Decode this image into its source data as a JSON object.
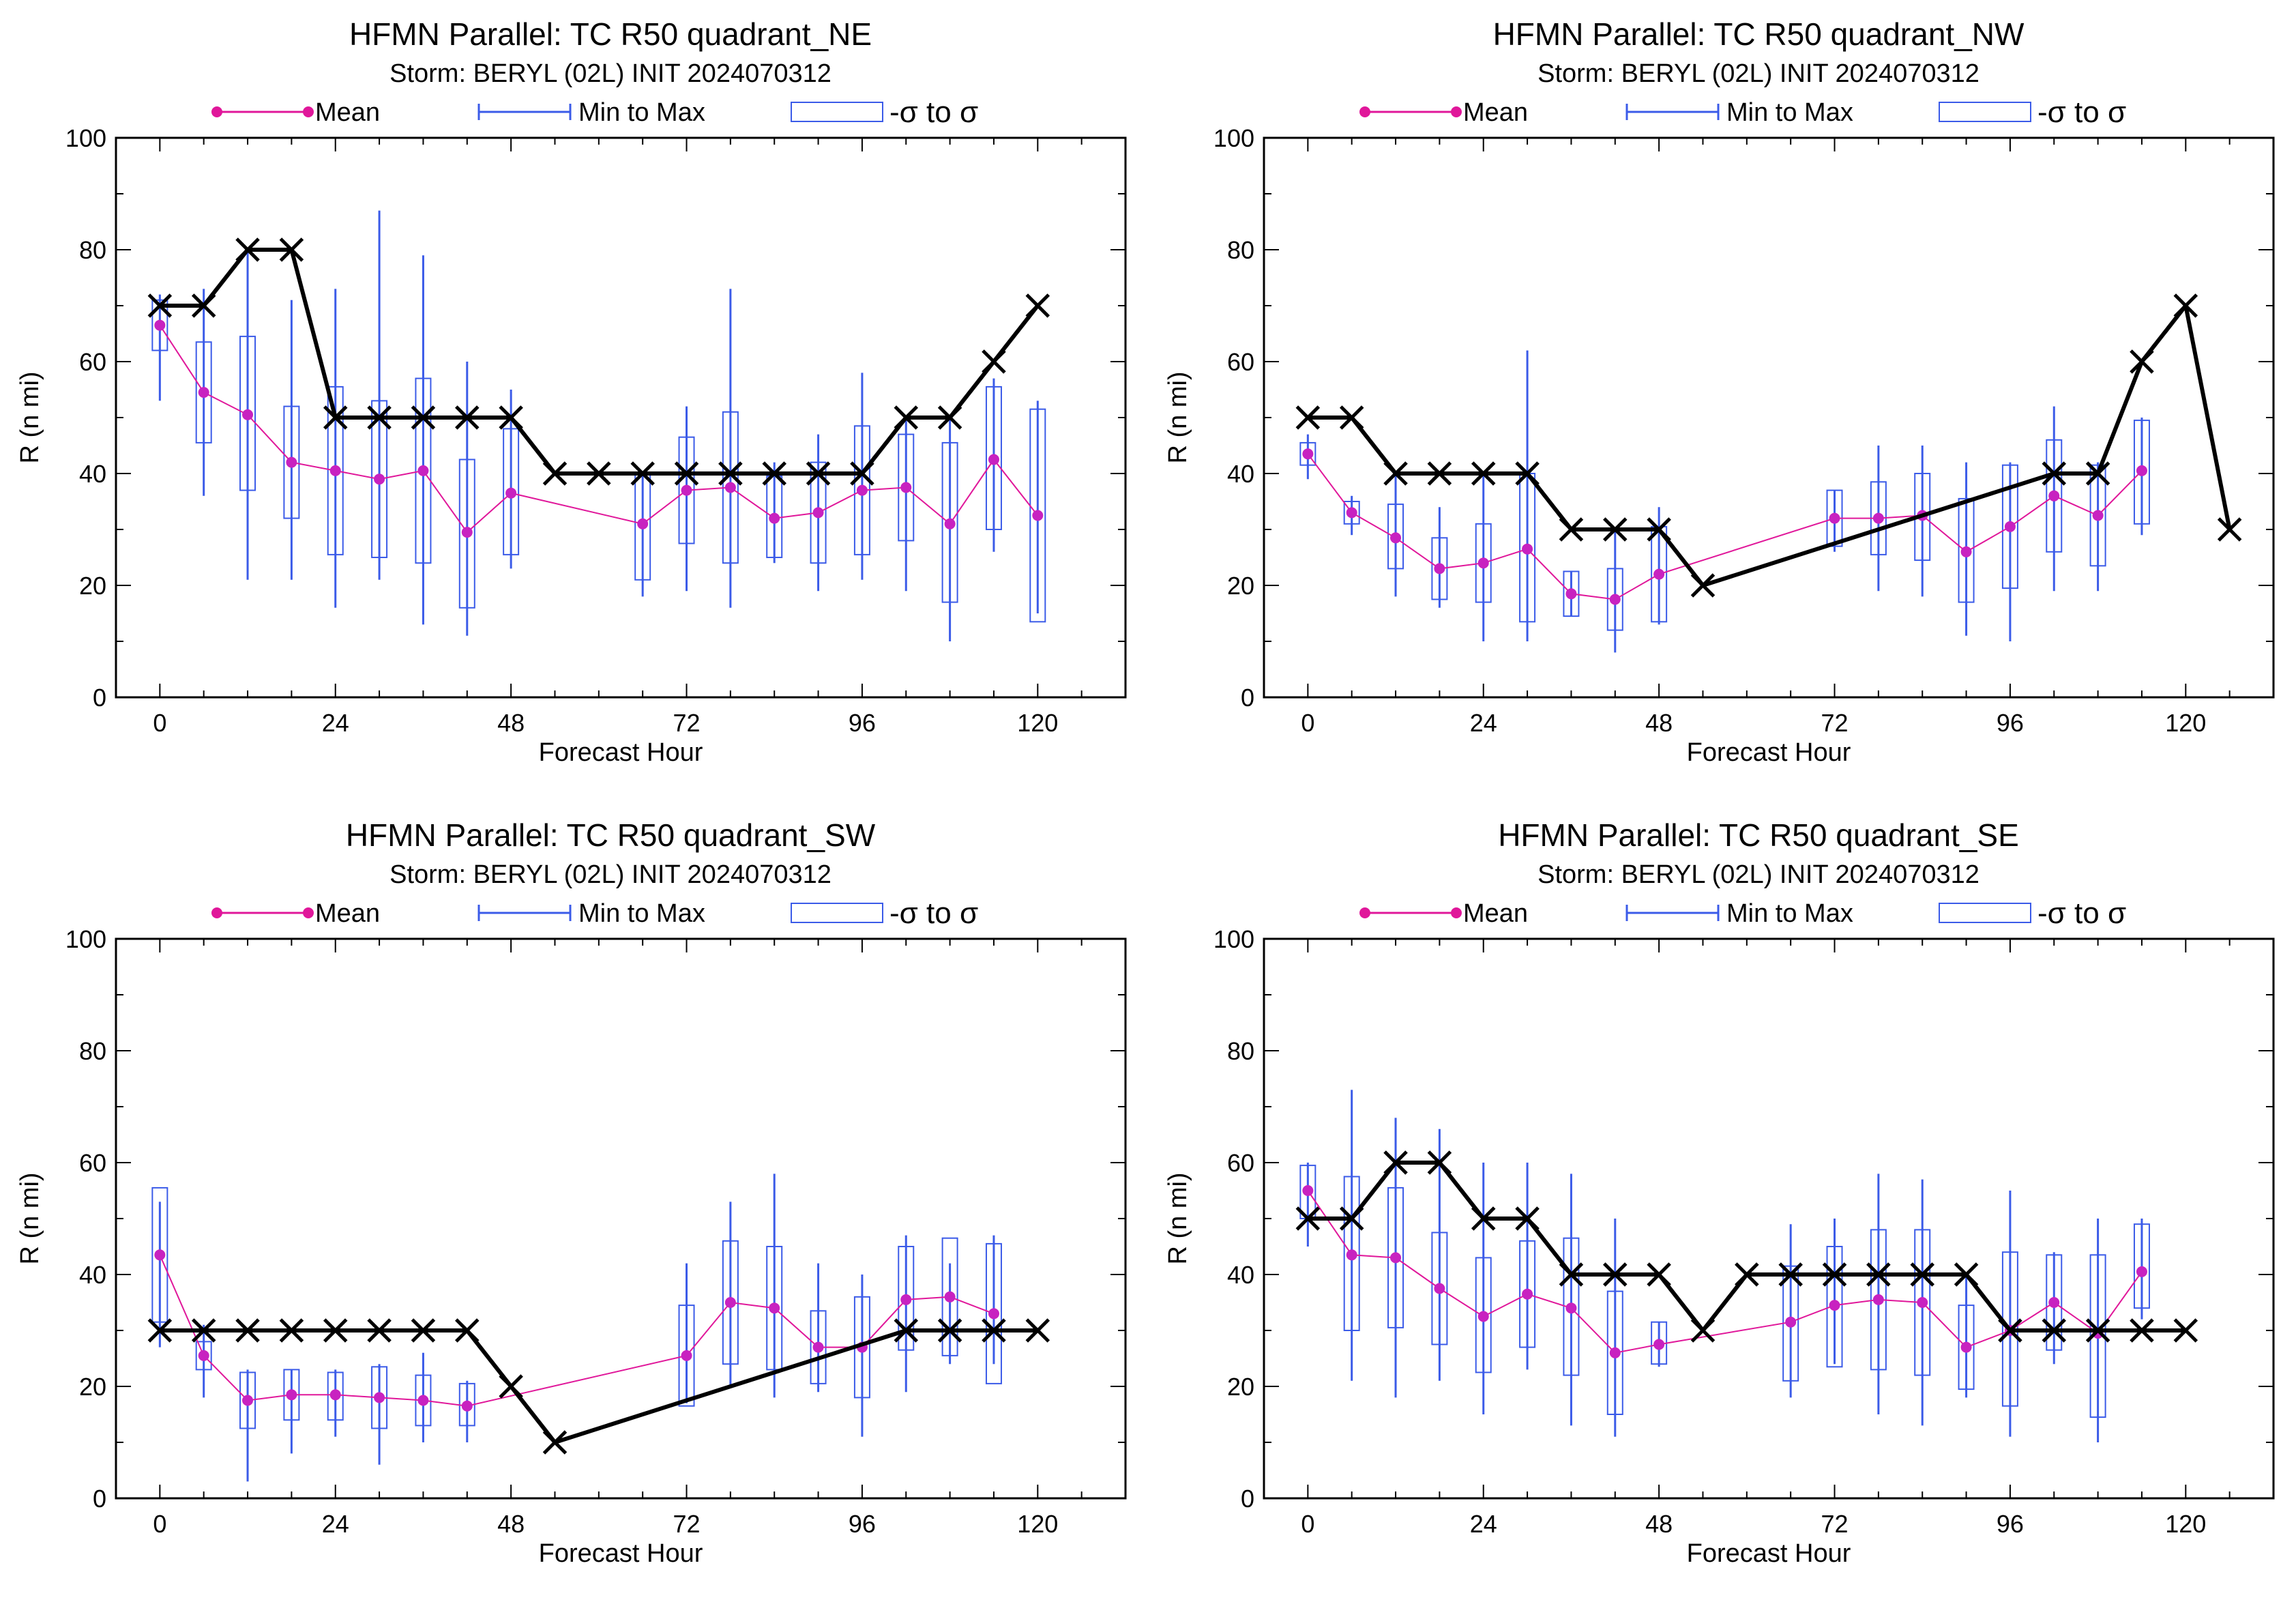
{
  "figure": {
    "legend": {
      "mean": "Mean",
      "range": "Min to Max",
      "sigma": "-σ to σ"
    },
    "colors": {
      "mean": "#e0179a",
      "mean_marker": "#c822c0",
      "ensemble": "#3b5be8",
      "best_track": "#000000",
      "axes": "#000000"
    }
  },
  "chart_data": [
    {
      "type": "box",
      "title": "HFMN Parallel: TC  R50 quadrant_NE",
      "subtitle": "Storm: BERYL (02L) INIT 2024070312",
      "xlabel": "Forecast Hour",
      "ylabel": "R (n mi)",
      "xlim": [
        -6,
        132
      ],
      "ylim": [
        0,
        100
      ],
      "xticks": [
        0,
        24,
        48,
        72,
        96,
        120
      ],
      "yticks": [
        0,
        20,
        40,
        60,
        80,
        100
      ],
      "mean": {
        "x": [
          0,
          6,
          12,
          18,
          24,
          30,
          36,
          42,
          48,
          66,
          72,
          78,
          84,
          90,
          96,
          102,
          108,
          114,
          120
        ],
        "y": [
          66.5,
          54.5,
          50.5,
          42,
          40.5,
          39,
          40.5,
          29.5,
          36.5,
          31,
          37,
          37.5,
          32,
          33,
          37,
          37.5,
          31,
          42.5,
          32.5
        ]
      },
      "min_max": {
        "x": [
          0,
          6,
          12,
          18,
          24,
          30,
          36,
          42,
          48,
          66,
          72,
          78,
          84,
          90,
          96,
          102,
          108,
          114,
          120
        ],
        "min": [
          53,
          36,
          21,
          21,
          16,
          21,
          13,
          11,
          23,
          18,
          19,
          16,
          24,
          19,
          21,
          19,
          10,
          26,
          15
        ],
        "max": [
          72,
          73,
          80,
          71,
          73,
          87,
          79,
          60,
          55,
          40,
          52,
          73,
          42,
          47,
          58,
          50,
          50,
          57,
          53
        ]
      },
      "sigma": {
        "x": [
          0,
          6,
          12,
          18,
          24,
          30,
          36,
          42,
          48,
          66,
          72,
          78,
          84,
          90,
          96,
          102,
          108,
          114,
          120
        ],
        "low": [
          62,
          45.5,
          37,
          32,
          25.5,
          25,
          24,
          16,
          25.5,
          21,
          27.5,
          24,
          25,
          24,
          25.5,
          28,
          17,
          30,
          13.5
        ],
        "high": [
          71,
          63.5,
          64.5,
          52,
          55.5,
          53,
          57,
          42.5,
          48,
          40,
          46.5,
          51,
          39.5,
          42,
          48.5,
          47,
          45.5,
          55.5,
          51.5
        ]
      },
      "best_track": {
        "x": [
          0,
          6,
          12,
          18,
          24,
          30,
          36,
          42,
          48,
          54,
          60,
          66,
          72,
          78,
          84,
          90,
          96,
          102,
          108,
          114,
          120
        ],
        "y": [
          70,
          70,
          80,
          80,
          50,
          50,
          50,
          50,
          50,
          40,
          40,
          40,
          40,
          40,
          40,
          40,
          40,
          50,
          50,
          60,
          70
        ]
      }
    },
    {
      "type": "box",
      "title": "HFMN Parallel: TC  R50 quadrant_NW",
      "subtitle": "Storm: BERYL (02L) INIT 2024070312",
      "xlabel": "Forecast Hour",
      "ylabel": "R (n mi)",
      "xlim": [
        -6,
        132
      ],
      "ylim": [
        0,
        100
      ],
      "xticks": [
        0,
        24,
        48,
        72,
        96,
        120
      ],
      "yticks": [
        0,
        20,
        40,
        60,
        80,
        100
      ],
      "mean": {
        "x": [
          0,
          6,
          12,
          18,
          24,
          30,
          36,
          42,
          48,
          72,
          78,
          84,
          90,
          96,
          102,
          108,
          114
        ],
        "y": [
          43.5,
          33,
          28.5,
          23,
          24,
          26.5,
          18.5,
          17.5,
          22,
          32,
          32,
          32.5,
          26,
          30.5,
          36,
          32.5,
          40.5
        ]
      },
      "min_max": {
        "x": [
          0,
          6,
          12,
          18,
          24,
          30,
          36,
          42,
          48,
          72,
          78,
          84,
          90,
          96,
          102,
          108,
          114
        ],
        "min": [
          39,
          29,
          18,
          16,
          10,
          10,
          14.5,
          8,
          13,
          26,
          19,
          18,
          11,
          10,
          19,
          19,
          29
        ],
        "max": [
          47,
          36,
          40,
          34,
          40,
          62,
          22.5,
          30,
          34,
          37,
          45,
          45,
          42,
          42,
          52,
          42,
          50
        ]
      },
      "sigma": {
        "x": [
          0,
          6,
          12,
          18,
          24,
          30,
          36,
          42,
          48,
          72,
          78,
          84,
          90,
          96,
          102,
          108,
          114
        ],
        "low": [
          41.5,
          31,
          23,
          17.5,
          17,
          13.5,
          14.5,
          12,
          13.5,
          27,
          25.5,
          24.5,
          17,
          19.5,
          26,
          23.5,
          31
        ],
        "high": [
          45.5,
          35,
          34.5,
          28.5,
          31,
          40,
          22.5,
          23,
          30.5,
          37,
          38.5,
          40,
          35.5,
          41.5,
          46,
          41.5,
          49.5
        ]
      },
      "best_track": {
        "x": [
          0,
          6,
          12,
          18,
          24,
          30,
          36,
          42,
          48,
          54,
          102,
          108,
          114,
          120,
          126
        ],
        "y": [
          50,
          50,
          40,
          40,
          40,
          40,
          30,
          30,
          30,
          20,
          40,
          40,
          60,
          70,
          30
        ]
      }
    },
    {
      "type": "box",
      "title": "HFMN Parallel: TC  R50 quadrant_SW",
      "subtitle": "Storm: BERYL (02L) INIT 2024070312",
      "xlabel": "Forecast Hour",
      "ylabel": "R (n mi)",
      "xlim": [
        -6,
        132
      ],
      "ylim": [
        0,
        100
      ],
      "xticks": [
        0,
        24,
        48,
        72,
        96,
        120
      ],
      "yticks": [
        0,
        20,
        40,
        60,
        80,
        100
      ],
      "mean": {
        "x": [
          0,
          6,
          12,
          18,
          24,
          30,
          36,
          42,
          72,
          78,
          84,
          90,
          96,
          102,
          108,
          114
        ],
        "y": [
          43.5,
          25.5,
          17.5,
          18.5,
          18.5,
          18,
          17.5,
          16.5,
          25.5,
          35,
          34,
          27,
          27,
          35.5,
          36,
          33
        ]
      },
      "min_max": {
        "x": [
          0,
          6,
          12,
          18,
          24,
          30,
          36,
          42,
          72,
          78,
          84,
          90,
          96,
          102,
          108,
          114
        ],
        "min": [
          27,
          18,
          3,
          8,
          11,
          6,
          10,
          10,
          17,
          20,
          18,
          19,
          11,
          19,
          24,
          24
        ],
        "max": [
          53,
          31,
          23,
          23,
          23,
          24,
          26,
          21,
          42,
          53,
          58,
          42,
          40,
          47,
          42,
          47
        ]
      },
      "sigma": {
        "x": [
          0,
          6,
          12,
          18,
          24,
          30,
          36,
          42,
          72,
          78,
          84,
          90,
          96,
          102,
          108,
          114
        ],
        "low": [
          31.5,
          23,
          12.5,
          14,
          14,
          12.5,
          13,
          13,
          16.5,
          24,
          23,
          20.5,
          18,
          26.5,
          25.5,
          20.5
        ],
        "high": [
          55.5,
          28,
          22.5,
          23,
          22.5,
          23.5,
          22,
          20.5,
          34.5,
          46,
          45,
          33.5,
          36,
          45,
          46.5,
          45.5
        ]
      },
      "best_track": {
        "x": [
          0,
          6,
          12,
          18,
          24,
          30,
          36,
          42,
          48,
          54,
          102,
          108,
          114,
          120
        ],
        "y": [
          30,
          30,
          30,
          30,
          30,
          30,
          30,
          30,
          20,
          10,
          30,
          30,
          30,
          30
        ]
      }
    },
    {
      "type": "box",
      "title": "HFMN Parallel: TC  R50 quadrant_SE",
      "subtitle": "Storm: BERYL (02L) INIT 2024070312",
      "xlabel": "Forecast Hour",
      "ylabel": "R (n mi)",
      "xlim": [
        -6,
        132
      ],
      "ylim": [
        0,
        100
      ],
      "xticks": [
        0,
        24,
        48,
        72,
        96,
        120
      ],
      "yticks": [
        0,
        20,
        40,
        60,
        80,
        100
      ],
      "mean": {
        "x": [
          0,
          6,
          12,
          18,
          24,
          30,
          36,
          42,
          48,
          66,
          72,
          78,
          84,
          90,
          96,
          102,
          108,
          114
        ],
        "y": [
          55,
          43.5,
          43,
          37.5,
          32.5,
          36.5,
          34,
          26,
          27.5,
          31.5,
          34.5,
          35.5,
          35,
          27,
          30,
          35,
          29.5,
          40.5
        ]
      },
      "min_max": {
        "x": [
          0,
          6,
          12,
          18,
          24,
          30,
          36,
          42,
          48,
          66,
          72,
          78,
          84,
          90,
          96,
          102,
          108,
          114
        ],
        "min": [
          45,
          21,
          18,
          21,
          15,
          23,
          13,
          11,
          23.5,
          18,
          24,
          15,
          13,
          18,
          11,
          24,
          10,
          32
        ],
        "max": [
          60,
          73,
          68,
          66,
          60,
          60,
          58,
          50,
          31.5,
          49,
          50,
          58,
          57,
          40,
          55,
          44,
          50,
          50
        ]
      },
      "sigma": {
        "x": [
          0,
          6,
          12,
          18,
          24,
          30,
          36,
          42,
          48,
          66,
          72,
          78,
          84,
          90,
          96,
          102,
          108,
          114
        ],
        "low": [
          50,
          30,
          30.5,
          27.5,
          22.5,
          27,
          22,
          15,
          24,
          21,
          23.5,
          23,
          22,
          19.5,
          16.5,
          26.5,
          14.5,
          34
        ],
        "high": [
          59.5,
          57.5,
          55.5,
          47.5,
          43,
          46,
          46.5,
          37,
          31.5,
          41.5,
          45,
          48,
          48,
          34.5,
          44,
          43.5,
          43.5,
          49
        ]
      },
      "best_track": {
        "x": [
          0,
          6,
          12,
          18,
          24,
          30,
          36,
          42,
          48,
          54,
          60,
          66,
          72,
          78,
          84,
          90,
          96,
          102,
          108,
          114,
          120
        ],
        "y": [
          50,
          50,
          60,
          60,
          50,
          50,
          40,
          40,
          40,
          30,
          40,
          40,
          40,
          40,
          40,
          40,
          30,
          30,
          30,
          30,
          30
        ]
      }
    }
  ]
}
